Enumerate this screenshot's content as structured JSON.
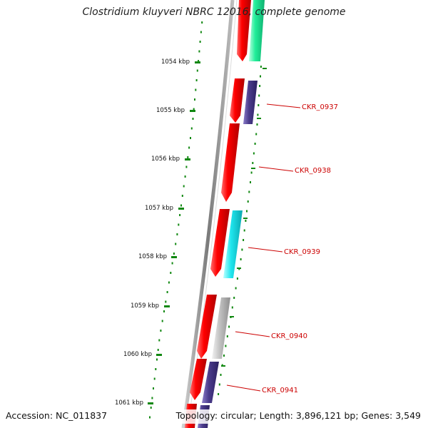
{
  "title": "Clostridium kluyveri NBRC 12016, complete genome",
  "footer": {
    "accession": "Accession: NC_011837",
    "topology": "Topology: circular; Length: 3,896,121 bp; Genes: 3,549"
  },
  "ruler": {
    "ticks": [
      {
        "position_kbp": 1054,
        "label": "1054 kbp"
      },
      {
        "position_kbp": 1055,
        "label": "1055 kbp"
      },
      {
        "position_kbp": 1056,
        "label": "1056 kbp"
      },
      {
        "position_kbp": 1057,
        "label": "1057 kbp"
      },
      {
        "position_kbp": 1058,
        "label": "1058 kbp"
      },
      {
        "position_kbp": 1059,
        "label": "1059 kbp"
      },
      {
        "position_kbp": 1060,
        "label": "1060 kbp"
      },
      {
        "position_kbp": 1061,
        "label": "1061 kbp"
      }
    ]
  },
  "genes": [
    {
      "label": "CKR_0937",
      "label_color": "#cc0000"
    },
    {
      "label": "CKR_0938",
      "label_color": "#cc0000"
    },
    {
      "label": "CKR_0939",
      "label_color": "#cc0000"
    },
    {
      "label": "CKR_0940",
      "label_color": "#cc0000"
    },
    {
      "label": "CKR_0941",
      "label_color": "#cc0000"
    }
  ],
  "colors": {
    "cds": "#ee0000",
    "backbone": "#888888",
    "ruler": "#118811",
    "teal": "#22ee99",
    "purple": "#4b3c8c",
    "cyan": "#22eeee",
    "gray": "#b8b8b8"
  }
}
